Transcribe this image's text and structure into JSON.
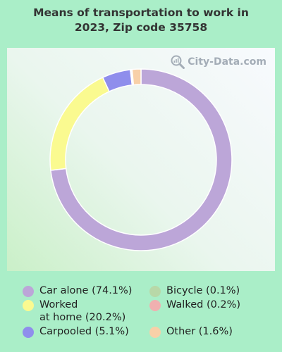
{
  "chart_data": {
    "type": "pie",
    "title": "Means of transportation to work in 2023, Zip code 35758",
    "title_lines": [
      "Means of transportation to work in",
      "2023, Zip code 35758"
    ],
    "watermark": "City-Data.com",
    "series": [
      {
        "label": "Car alone",
        "value": 74.1,
        "color": "#bca6d8"
      },
      {
        "label": "Worked at home",
        "value": 20.2,
        "color": "#fafa90"
      },
      {
        "label": "Carpooled",
        "value": 5.1,
        "color": "#8f8eec"
      },
      {
        "label": "Bicycle",
        "value": 0.1,
        "color": "#b8d8a8"
      },
      {
        "label": "Walked",
        "value": 0.2,
        "color": "#f0b0b0"
      },
      {
        "label": "Other",
        "value": 1.6,
        "color": "#f8d0a8"
      }
    ],
    "legend_entries": [
      {
        "lines": [
          "Car alone (74.1%)"
        ]
      },
      {
        "lines": [
          "Worked",
          "at home (20.2%)"
        ]
      },
      {
        "lines": [
          "Carpooled (5.1%)"
        ]
      },
      {
        "lines": [
          "Bicycle (0.1%)"
        ]
      },
      {
        "lines": [
          "Walked (0.2%)"
        ]
      },
      {
        "lines": [
          "Other (1.6%)"
        ]
      }
    ]
  }
}
